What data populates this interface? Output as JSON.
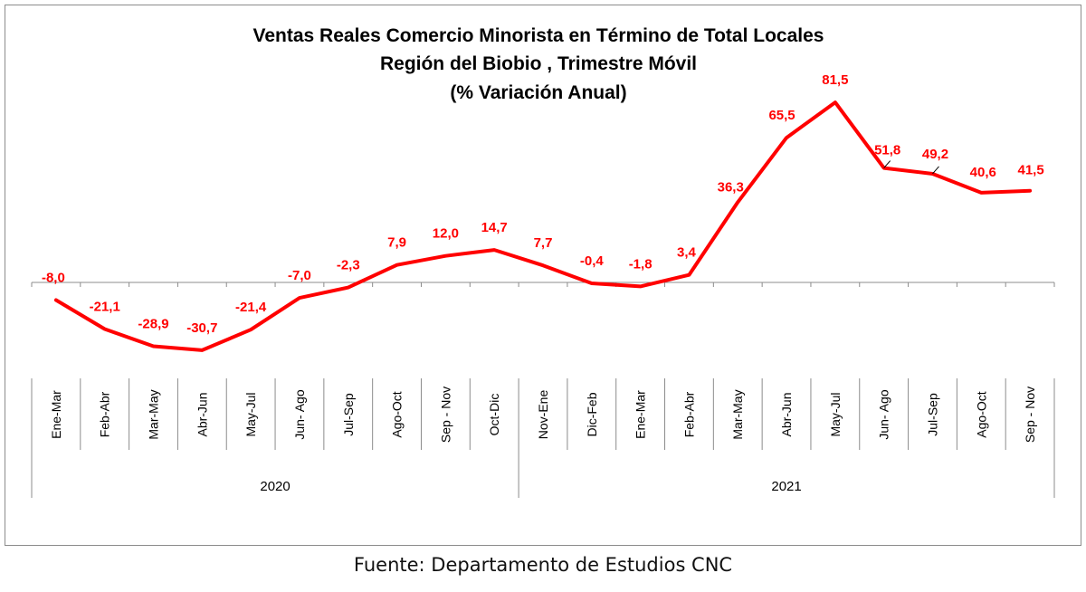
{
  "chart_data": {
    "type": "line",
    "title": [
      "Ventas Reales Comercio Minorista  en Término de Total Locales",
      "Región del Biobio , Trimestre Móvil",
      "(% Variación Anual)"
    ],
    "categories": [
      "Ene-Mar",
      "Feb-Abr",
      "Mar-May",
      "Abr-Jun",
      "May-Jul",
      "Jun- Ago",
      "Jul-Sep",
      "Ago-Oct",
      "Sep - Nov",
      "Oct-Dic",
      "Nov-Ene",
      "Dic-Feb",
      "Ene-Mar",
      "Feb-Abr",
      "Mar-May",
      "Abr-Jun",
      "May-Jul",
      "Jun- Ago",
      "Jul-Sep",
      "Ago-Oct",
      "Sep - Nov"
    ],
    "year_groups": [
      {
        "label": "2020",
        "start": 0,
        "end": 9
      },
      {
        "label": "2021",
        "start": 10,
        "end": 20
      }
    ],
    "series": [
      {
        "values": [
          -8.0,
          -21.1,
          -28.9,
          -30.7,
          -21.4,
          -7.0,
          -2.3,
          7.9,
          12.0,
          14.7,
          7.7,
          -0.4,
          -1.8,
          3.4,
          36.3,
          65.5,
          81.5,
          51.8,
          49.2,
          40.6,
          41.5
        ],
        "labels": [
          "-8,0",
          "-21,1",
          "-28,9",
          "-30,7",
          "-21,4",
          "-7,0",
          "-2,3",
          "7,9",
          "12,0",
          "14,7",
          "7,7",
          "-0,4",
          "-1,8",
          "3,4",
          "36,3",
          "65,5",
          "81,5",
          "51,8",
          "49,2",
          "40,6",
          "41,5"
        ],
        "color": "#ff0000"
      }
    ],
    "ylim": [
      -40,
      90
    ],
    "grid": false,
    "legend": "none"
  },
  "footer": {
    "source": "Fuente: Departamento de Estudios CNC"
  }
}
